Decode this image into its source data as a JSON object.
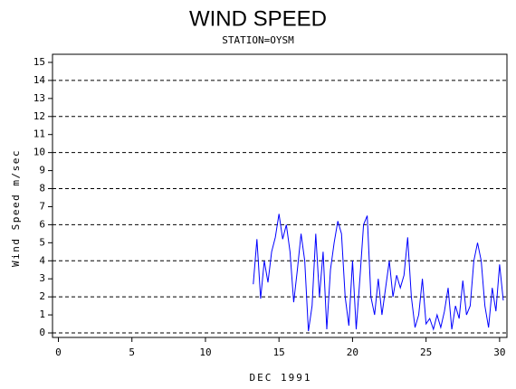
{
  "chart_data": {
    "type": "line",
    "title": "WIND SPEED",
    "subtitle": "STATION=OYSM",
    "x_label": "DEC 1991",
    "y_label": "Wind Speed m/sec",
    "color": "#0000ff",
    "x": [
      13.25,
      13.5,
      13.75,
      14.0,
      14.25,
      14.5,
      14.75,
      15.0,
      15.25,
      15.5,
      15.75,
      16.0,
      16.25,
      16.5,
      16.75,
      17.0,
      17.25,
      17.5,
      17.75,
      18.0,
      18.25,
      18.5,
      18.75,
      19.0,
      19.25,
      19.5,
      19.75,
      20.0,
      20.25,
      20.5,
      20.75,
      21.0,
      21.25,
      21.5,
      21.75,
      22.0,
      22.25,
      22.5,
      22.75,
      23.0,
      23.25,
      23.5,
      23.75,
      24.0,
      24.25,
      24.5,
      24.75,
      25.0,
      25.25,
      25.5,
      25.75,
      26.0,
      26.25,
      26.5,
      26.75,
      27.0,
      27.25,
      27.5,
      27.75,
      28.0,
      28.25,
      28.5,
      28.75,
      29.0,
      29.25,
      29.5,
      29.75,
      30.0,
      30.25
    ],
    "values": [
      2.7,
      5.2,
      1.9,
      4.0,
      2.8,
      4.5,
      5.3,
      6.6,
      5.2,
      6.0,
      4.5,
      1.7,
      3.5,
      5.5,
      4.0,
      0.1,
      1.5,
      5.5,
      2.0,
      4.5,
      0.2,
      3.5,
      5.0,
      6.2,
      5.5,
      2.0,
      0.4,
      4.0,
      0.2,
      3.0,
      6.0,
      6.5,
      2.0,
      1.0,
      3.0,
      1.0,
      2.5,
      4.0,
      2.0,
      3.2,
      2.5,
      3.2,
      5.3,
      2.0,
      0.3,
      1.0,
      3.0,
      0.5,
      0.8,
      0.2,
      1.0,
      0.3,
      1.2,
      2.5,
      0.2,
      1.5,
      0.8,
      2.9,
      1.0,
      1.5,
      4.0,
      5.0,
      4.0,
      1.5,
      0.3,
      2.5,
      1.2,
      3.8,
      1.8
    ],
    "xlim": [
      -0.4,
      30.5
    ],
    "ylim": [
      -0.25,
      15.45
    ],
    "xticks": [
      0,
      5,
      10,
      15,
      20,
      25,
      30
    ],
    "yticks": [
      0,
      1,
      2,
      3,
      4,
      5,
      6,
      7,
      8,
      9,
      10,
      11,
      12,
      13,
      14,
      15
    ],
    "grid_lines": [
      0,
      2,
      4,
      6,
      8,
      10,
      12,
      14
    ]
  }
}
